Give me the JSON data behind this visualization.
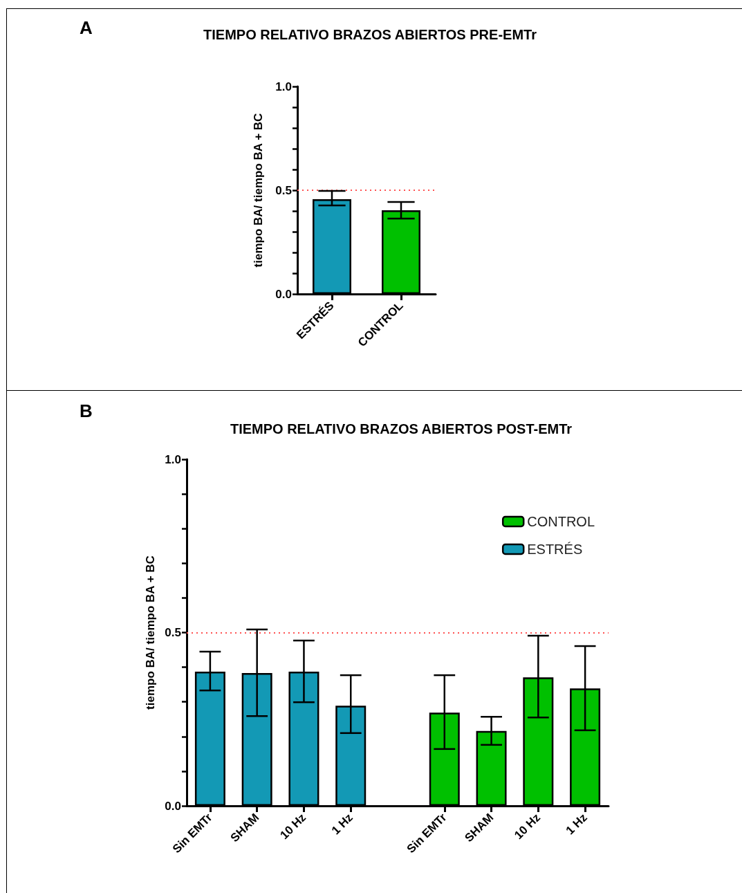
{
  "chart_data": [
    {
      "type": "bar",
      "title": "TIEMPO RELATIVO BRAZOS ABIERTOS PRE-EMTr",
      "ylabel": "tiempo BA/ tiempo BA + BC",
      "annotations": [
        "A"
      ],
      "categories": [
        "ESTRÉS",
        "CONTROL"
      ],
      "series": [
        {
          "color": "#1399b5",
          "values": [
            0.457,
            0.403
          ],
          "colors": [
            "#1399b5",
            "#00c000"
          ],
          "errors": [
            [
              0.427,
              0.497
            ],
            [
              0.363,
              0.443
            ]
          ]
        }
      ],
      "ylim": [
        0,
        1
      ],
      "yticks": [
        {
          "value": 0,
          "label": "0.0"
        },
        {
          "value": 0.1,
          "label": null
        },
        {
          "value": 0.2,
          "label": null
        },
        {
          "value": 0.3,
          "label": null
        },
        {
          "value": 0.4,
          "label": null
        },
        {
          "value": 0.5,
          "label": "0.5"
        },
        {
          "value": 0.6,
          "label": null
        },
        {
          "value": 0.7,
          "label": null
        },
        {
          "value": 0.8,
          "label": null
        },
        {
          "value": 0.9,
          "label": null
        },
        {
          "value": 1,
          "label": "1.0"
        }
      ],
      "ref_lines": [
        {
          "axis": "y",
          "value": 0.5,
          "color": "#ff5050",
          "line_style": "dotted"
        }
      ]
    },
    {
      "type": "bar",
      "title": "TIEMPO RELATIVO BRAZOS ABIERTOS POST-EMTr",
      "ylabel": "tiempo BA/ tiempo BA + BC",
      "annotations": [
        "B"
      ],
      "categories": [
        "Sin EMTr",
        "SHAM",
        "10 Hz",
        "1 Hz",
        null,
        "Sin EMTr",
        "SHAM",
        "10 Hz",
        "1 Hz"
      ],
      "series": [
        {
          "name": "CONTROL",
          "color": "#00c000",
          "values": [
            null,
            null,
            null,
            null,
            null,
            0.269,
            0.216,
            0.371,
            0.339
          ],
          "errors": [
            null,
            null,
            null,
            null,
            null,
            [
              0.164,
              0.377
            ],
            [
              0.176,
              0.257
            ],
            [
              0.255,
              0.491
            ],
            [
              0.218,
              0.461
            ]
          ]
        },
        {
          "name": "ESTRÉS",
          "color": "#1399b5",
          "values": [
            0.387,
            0.383,
            0.387,
            0.289,
            null,
            null,
            null,
            null,
            null
          ],
          "errors": [
            [
              0.333,
              0.445
            ],
            [
              0.259,
              0.509
            ],
            [
              0.299,
              0.477
            ],
            [
              0.21,
              0.377
            ],
            null,
            null,
            null,
            null,
            null
          ]
        }
      ],
      "ylim": [
        0,
        1
      ],
      "yticks": [
        {
          "value": 0,
          "label": "0.0"
        },
        {
          "value": 0.1,
          "label": null
        },
        {
          "value": 0.2,
          "label": null
        },
        {
          "value": 0.3,
          "label": null
        },
        {
          "value": 0.4,
          "label": null
        },
        {
          "value": 0.5,
          "label": "0.5"
        },
        {
          "value": 0.6,
          "label": null
        },
        {
          "value": 0.7,
          "label": null
        },
        {
          "value": 0.8,
          "label": null
        },
        {
          "value": 0.9,
          "label": null
        },
        {
          "value": 1,
          "label": "1.0"
        }
      ],
      "legend": "top right",
      "ref_lines": [
        {
          "axis": "y",
          "value": 0.5,
          "color": "#ff5050",
          "line_style": "dotted"
        }
      ]
    }
  ]
}
